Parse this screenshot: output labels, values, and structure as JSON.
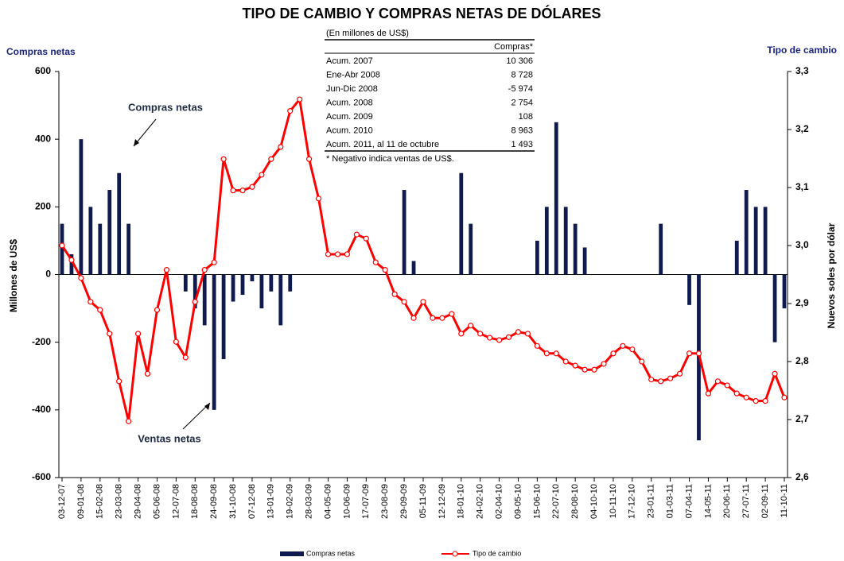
{
  "chart_data": {
    "type": "bar",
    "title": "TIPO DE CAMBIO Y COMPRAS NETAS DE DÓLARES",
    "y_axis_caption": "Compras netas",
    "y2_axis_caption": "Tipo de cambio",
    "ylabel": "Millones de US$",
    "y2label": "Nuevos soles por dólar",
    "ylim": [
      -600,
      600
    ],
    "yticks": [
      -600,
      -400,
      -200,
      0,
      200,
      400,
      600
    ],
    "y2lim": [
      2.6,
      3.3
    ],
    "y2ticks": [
      {
        "value": 2.6,
        "label": "2,6"
      },
      {
        "value": 2.7,
        "label": "2,7"
      },
      {
        "value": 2.8,
        "label": "2,8"
      },
      {
        "value": 2.9,
        "label": "2,9"
      },
      {
        "value": 3.0,
        "label": "3,0"
      },
      {
        "value": 3.1,
        "label": "3,1"
      },
      {
        "value": 3.2,
        "label": "3,2"
      },
      {
        "value": 3.3,
        "label": "3,3"
      }
    ],
    "categories": [
      "03-12-07",
      null,
      "09-01-08",
      null,
      "15-02-08",
      null,
      "23-03-08",
      null,
      "29-04-08",
      null,
      "05-06-08",
      null,
      "12-07-08",
      null,
      "18-08-08",
      null,
      "24-09-08",
      null,
      "31-10-08",
      null,
      "07-12-08",
      null,
      "13-01-09",
      null,
      "19-02-09",
      null,
      "28-03-09",
      null,
      "04-05-09",
      null,
      "10-06-09",
      null,
      "17-07-09",
      null,
      "23-08-09",
      null,
      "29-09-09",
      null,
      "05-11-09",
      null,
      "12-12-09",
      null,
      "18-01-10",
      null,
      "24-02-10",
      null,
      "02-04-10",
      null,
      "09-05-10",
      null,
      "15-06-10",
      null,
      "22-07-10",
      null,
      "28-08-10",
      null,
      "04-10-10",
      null,
      "10-11-10",
      null,
      "17-12-10",
      null,
      "23-01-11",
      null,
      "01-03-11",
      null,
      "07-04-11",
      null,
      "14-05-11",
      null,
      "20-06-11",
      null,
      "27-07-11",
      null,
      "02-09-11",
      null,
      "11-10-11"
    ],
    "series": [
      {
        "name": "Compras netas",
        "type": "bar",
        "color": "#0f1a4e",
        "values": [
          150,
          60,
          400,
          200,
          150,
          250,
          300,
          150,
          0,
          0,
          0,
          0,
          0,
          -50,
          -100,
          -150,
          -400,
          -250,
          -80,
          -60,
          -20,
          -100,
          -50,
          -150,
          -50,
          0,
          0,
          0,
          0,
          0,
          0,
          0,
          0,
          0,
          0,
          0,
          250,
          40,
          0,
          0,
          0,
          0,
          300,
          150,
          0,
          0,
          0,
          0,
          0,
          0,
          100,
          200,
          450,
          200,
          150,
          80,
          0,
          0,
          0,
          0,
          0,
          0,
          0,
          150,
          0,
          0,
          -90,
          -490,
          0,
          0,
          0,
          100,
          250,
          200,
          200,
          -200,
          -100
        ]
      },
      {
        "name": "Tipo de cambio",
        "type": "line",
        "axis": "y2",
        "color": "#ff0000",
        "values": [
          3.0,
          2.975,
          2.944,
          2.903,
          2.889,
          2.848,
          2.766,
          2.697,
          2.848,
          2.779,
          2.889,
          2.958,
          2.834,
          2.807,
          2.903,
          2.958,
          2.971,
          3.149,
          3.095,
          3.095,
          3.101,
          3.122,
          3.149,
          3.17,
          3.232,
          3.252,
          3.149,
          3.081,
          2.985,
          2.985,
          2.985,
          3.019,
          3.012,
          2.971,
          2.958,
          2.916,
          2.903,
          2.875,
          2.903,
          2.875,
          2.875,
          2.882,
          2.848,
          2.862,
          2.848,
          2.841,
          2.837,
          2.842,
          2.851,
          2.848,
          2.827,
          2.814,
          2.814,
          2.8,
          2.793,
          2.786,
          2.786,
          2.796,
          2.814,
          2.827,
          2.821,
          2.8,
          2.769,
          2.766,
          2.771,
          2.779,
          2.814,
          2.814,
          2.745,
          2.766,
          2.759,
          2.745,
          2.738,
          2.732,
          2.732,
          2.779,
          2.738
        ]
      }
    ],
    "annotations": [
      {
        "text": "Compras netas"
      },
      {
        "text": "Ventas netas"
      }
    ],
    "table": {
      "title": "(En millones de US$)",
      "header": "Compras*",
      "rows": [
        [
          "Acum. 2007",
          "10 306"
        ],
        [
          "Ene-Abr 2008",
          "8 728"
        ],
        [
          "Jun-Dic 2008",
          "-5 974"
        ],
        [
          "Acum. 2008",
          "2 754"
        ],
        [
          "Acum. 2009",
          "108"
        ],
        [
          "Acum. 2010",
          "8 963"
        ],
        [
          "Acum. 2011, al 11 de octubre",
          "1 493"
        ]
      ],
      "note": "* Negativo indica ventas de US$."
    }
  }
}
